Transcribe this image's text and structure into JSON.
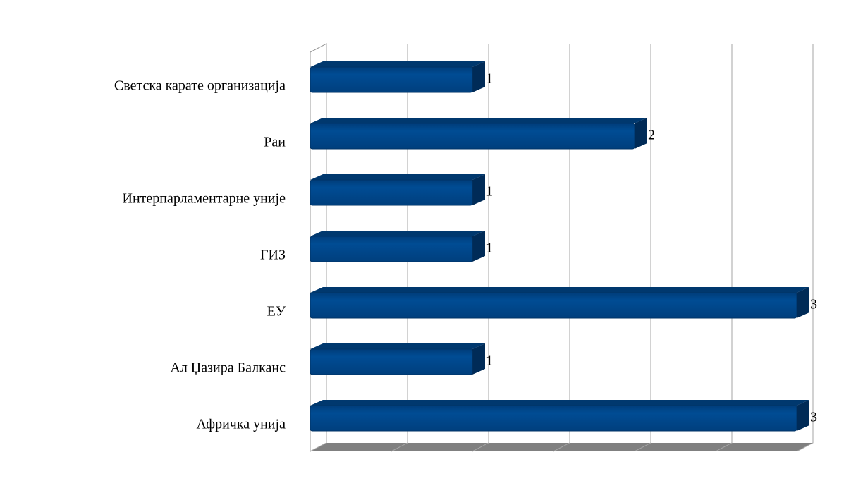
{
  "chart_data": {
    "type": "bar",
    "orientation": "horizontal",
    "categories": [
      "Светска карате организација",
      "Раи",
      "Интерпарламентарне уније",
      "ГИЗ",
      "ЕУ",
      "Ал Џазира Балканс",
      "Афричка унија"
    ],
    "values": [
      1,
      2,
      1,
      1,
      3,
      1,
      3
    ],
    "color": "#004a8f",
    "xlim": [
      0,
      3
    ],
    "xticks": [
      0,
      0.5,
      1,
      1.5,
      2,
      2.5,
      3
    ],
    "grid": true
  }
}
